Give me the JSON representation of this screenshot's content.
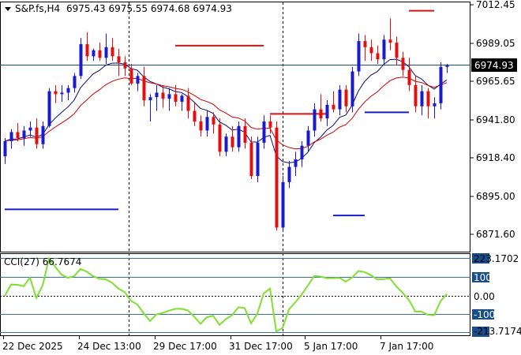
{
  "header": {
    "symbol": "S&P.fs,H4",
    "ohlc": "6975.43 6975.55 6974.68 6974.93"
  },
  "price_axis": {
    "ticks": [
      "7012.45",
      "6989.05",
      "6965.65",
      "6941.80",
      "6918.40",
      "6895.00",
      "6871.60"
    ],
    "current_price": "6974.93"
  },
  "time_axis": {
    "labels": [
      "22 Dec 2025",
      "24 Dec 13:00",
      "29 Dec 17:00",
      "31 Dec 17:00",
      "5 Jan 17:00",
      "7 Jan 17:00"
    ]
  },
  "indicator": {
    "title": "CCI(27) 66.7674",
    "ticks": [
      "223.1702",
      "100",
      "0.00",
      "-100",
      "-213.7174"
    ]
  },
  "colors": {
    "bull": "#1a1ac8",
    "bear": "#dd1111",
    "ma_fast": "#0a0a80",
    "ma_slow": "#cc0000",
    "cci": "#7ee030",
    "highlight": "#1a4e8a",
    "grid": "#000000"
  },
  "chart_data": {
    "type": "candlestick",
    "timeframe": "H4",
    "ylim": [
      6862,
      7015
    ],
    "candles": [
      [
        6915,
        6927,
        6910,
        6925
      ],
      [
        6925,
        6933,
        6920,
        6931
      ],
      [
        6931,
        6937,
        6925,
        6927
      ],
      [
        6927,
        6935,
        6922,
        6932
      ],
      [
        6932,
        6938,
        6928,
        6934
      ],
      [
        6934,
        6940,
        6920,
        6923
      ],
      [
        6923,
        6938,
        6920,
        6935
      ],
      [
        6935,
        6960,
        6934,
        6958
      ],
      [
        6958,
        6962,
        6950,
        6956
      ],
      [
        6956,
        6962,
        6951,
        6957
      ],
      [
        6957,
        6962,
        6952,
        6960
      ],
      [
        6960,
        6970,
        6957,
        6968
      ],
      [
        6968,
        6993,
        6966,
        6989
      ],
      [
        6989,
        6997,
        6978,
        6981
      ],
      [
        6981,
        6986,
        6978,
        6985
      ],
      [
        6985,
        6990,
        6978,
        6980
      ],
      [
        6980,
        6996,
        6976,
        6987
      ],
      [
        6987,
        6993,
        6978,
        6981
      ],
      [
        6981,
        6986,
        6968,
        6977
      ],
      [
        6977,
        6981,
        6968,
        6973
      ],
      [
        6973,
        6976,
        6962,
        6963
      ],
      [
        6963,
        6970,
        6958,
        6968
      ],
      [
        6968,
        6974,
        6948,
        6952
      ],
      [
        6952,
        6956,
        6938,
        6954
      ],
      [
        6954,
        6962,
        6945,
        6957
      ],
      [
        6957,
        6962,
        6947,
        6953
      ],
      [
        6953,
        6960,
        6945,
        6956
      ],
      [
        6956,
        6962,
        6948,
        6951
      ],
      [
        6951,
        6956,
        6945,
        6955
      ],
      [
        6955,
        6960,
        6940,
        6945
      ],
      [
        6945,
        6950,
        6935,
        6938
      ],
      [
        6938,
        6942,
        6928,
        6932
      ],
      [
        6932,
        6945,
        6928,
        6941
      ],
      [
        6941,
        6944,
        6930,
        6936
      ],
      [
        6936,
        6940,
        6915,
        6918
      ],
      [
        6918,
        6930,
        6915,
        6928
      ],
      [
        6928,
        6935,
        6918,
        6921
      ],
      [
        6921,
        6938,
        6918,
        6935
      ],
      [
        6935,
        6940,
        6920,
        6924
      ],
      [
        6924,
        6928,
        6900,
        6902
      ],
      [
        6902,
        6928,
        6898,
        6924
      ],
      [
        6924,
        6942,
        6920,
        6938
      ],
      [
        6938,
        6942,
        6930,
        6934
      ],
      [
        6934,
        6938,
        6866,
        6868
      ],
      [
        6868,
        6902,
        6865,
        6898
      ],
      [
        6898,
        6912,
        6894,
        6908
      ],
      [
        6908,
        6918,
        6902,
        6913
      ],
      [
        6913,
        6925,
        6908,
        6922
      ],
      [
        6922,
        6935,
        6918,
        6932
      ],
      [
        6932,
        6950,
        6928,
        6946
      ],
      [
        6946,
        6956,
        6938,
        6940
      ],
      [
        6940,
        6952,
        6935,
        6949
      ],
      [
        6949,
        6958,
        6944,
        6946
      ],
      [
        6946,
        6962,
        6942,
        6959
      ],
      [
        6959,
        6962,
        6944,
        6948
      ],
      [
        6948,
        6974,
        6944,
        6971
      ],
      [
        6971,
        6996,
        6968,
        6991
      ],
      [
        6991,
        6995,
        6978,
        6987
      ],
      [
        6987,
        6992,
        6978,
        6983
      ],
      [
        6983,
        6988,
        6976,
        6979
      ],
      [
        6979,
        6995,
        6975,
        6992
      ],
      [
        6992,
        7006,
        6985,
        6990
      ],
      [
        6990,
        6994,
        6975,
        6980
      ],
      [
        6980,
        6984,
        6968,
        6972
      ],
      [
        6972,
        6980,
        6958,
        6962
      ],
      [
        6962,
        6968,
        6944,
        6948
      ],
      [
        6948,
        6962,
        6942,
        6958
      ],
      [
        6958,
        6960,
        6940,
        6948
      ],
      [
        6948,
        6954,
        6940,
        6950
      ],
      [
        6950,
        6977,
        6946,
        6974
      ],
      [
        6974,
        6976,
        6970,
        6975
      ]
    ],
    "red_stop_line": [
      {
        "from": 27,
        "to": 41,
        "value": 6988
      },
      {
        "from": 42,
        "to": 51,
        "value": 6943
      },
      {
        "from": 64,
        "to": 68,
        "value": 7011
      }
    ],
    "blue_stop_line": [
      {
        "from": 0,
        "to": 18,
        "value": 6880
      },
      {
        "from": 52,
        "to": 57,
        "value": 6876
      },
      {
        "from": 57,
        "to": 64,
        "value": 6944
      }
    ],
    "cci": {
      "ylim": [
        -213.7174,
        223.1702
      ],
      "levels": [
        100,
        0,
        -100
      ]
    }
  }
}
